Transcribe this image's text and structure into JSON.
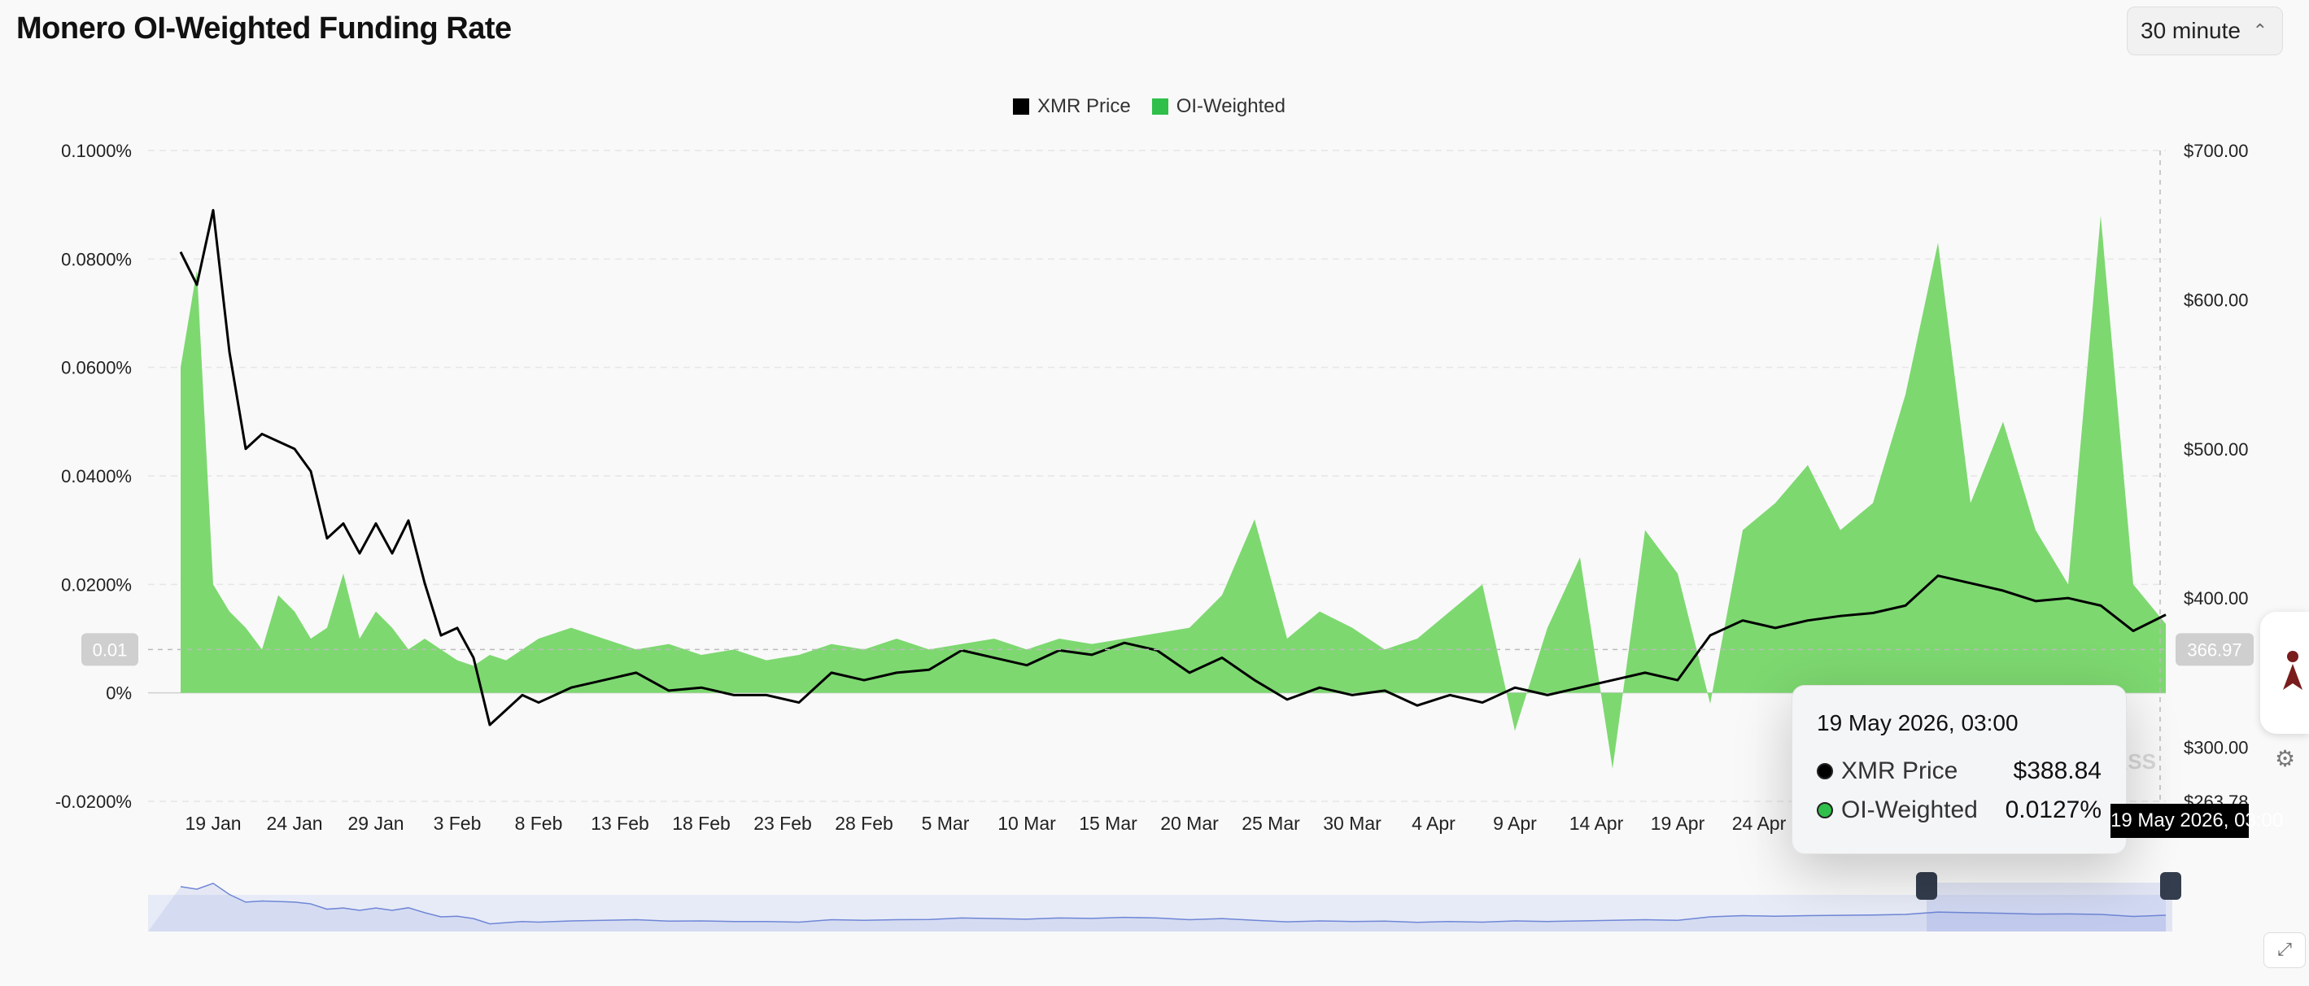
{
  "page": {
    "title": "Monero OI-Weighted Funding Rate",
    "interval_label": "30 minute"
  },
  "colors": {
    "price": "#000000",
    "funding_pos": "#7dd870",
    "funding_neg": "#ef6b6b",
    "navigator": "#6f86d6"
  },
  "chart_data": {
    "type": "area",
    "x_type": "date",
    "x_ticks": [
      "19 Jan",
      "24 Jan",
      "29 Jan",
      "3 Feb",
      "8 Feb",
      "13 Feb",
      "18 Feb",
      "23 Feb",
      "28 Feb",
      "5 Mar",
      "10 Mar",
      "15 Mar",
      "20 Mar",
      "25 Mar",
      "30 Mar",
      "4 Apr",
      "9 Apr",
      "14 Apr",
      "19 Apr",
      "24 Apr"
    ],
    "y_left_ticks": [
      "0.1000%",
      "0.0800%",
      "0.0600%",
      "0.0400%",
      "0.0200%",
      "0%",
      "-0.0200%"
    ],
    "y_left_range": [
      -0.02,
      0.1
    ],
    "y_right_ticks": [
      "$700.00",
      "$600.00",
      "$500.00",
      "$400.00",
      "$300.00"
    ],
    "y_right_range": [
      263.78,
      700
    ],
    "y_right_min_label": "$263.78",
    "crosshair_left_label": "0.01",
    "crosshair_right_label": "366.97",
    "legend": [
      "XMR Price",
      "OI-Weighted"
    ],
    "series": [
      {
        "name": "XMR Price",
        "axis": "right",
        "type": "line",
        "x": [
          "2026-01-17",
          "2026-01-18",
          "2026-01-19",
          "2026-01-20",
          "2026-01-21",
          "2026-01-22",
          "2026-01-23",
          "2026-01-24",
          "2026-01-25",
          "2026-01-26",
          "2026-01-27",
          "2026-01-28",
          "2026-01-29",
          "2026-01-30",
          "2026-01-31",
          "2026-02-01",
          "2026-02-02",
          "2026-02-03",
          "2026-02-04",
          "2026-02-05",
          "2026-02-06",
          "2026-02-07",
          "2026-02-08",
          "2026-02-10",
          "2026-02-12",
          "2026-02-14",
          "2026-02-16",
          "2026-02-18",
          "2026-02-20",
          "2026-02-22",
          "2026-02-24",
          "2026-02-26",
          "2026-02-28",
          "2026-03-02",
          "2026-03-04",
          "2026-03-06",
          "2026-03-08",
          "2026-03-10",
          "2026-03-12",
          "2026-03-14",
          "2026-03-16",
          "2026-03-18",
          "2026-03-20",
          "2026-03-22",
          "2026-03-24",
          "2026-03-26",
          "2026-03-28",
          "2026-03-30",
          "2026-04-01",
          "2026-04-03",
          "2026-04-05",
          "2026-04-07",
          "2026-04-09",
          "2026-04-11",
          "2026-04-13",
          "2026-04-15",
          "2026-04-17",
          "2026-04-19",
          "2026-04-21",
          "2026-04-23",
          "2026-04-25",
          "2026-04-27",
          "2026-04-29",
          "2026-05-01",
          "2026-05-03",
          "2026-05-05",
          "2026-05-07",
          "2026-05-09",
          "2026-05-11",
          "2026-05-13",
          "2026-05-15",
          "2026-05-17",
          "2026-05-19"
        ],
        "values": [
          632,
          610,
          660,
          565,
          500,
          510,
          505,
          500,
          485,
          440,
          450,
          430,
          450,
          430,
          452,
          410,
          375,
          380,
          360,
          315,
          325,
          335,
          330,
          340,
          345,
          350,
          338,
          340,
          335,
          335,
          330,
          350,
          345,
          350,
          352,
          365,
          360,
          355,
          365,
          362,
          370,
          365,
          350,
          360,
          345,
          332,
          340,
          335,
          338,
          328,
          335,
          330,
          340,
          335,
          340,
          345,
          350,
          345,
          375,
          385,
          380,
          385,
          388,
          390,
          395,
          415,
          410,
          405,
          398,
          400,
          395,
          378,
          388.84
        ]
      },
      {
        "name": "OI-Weighted",
        "axis": "left",
        "type": "area",
        "x": [
          "2026-01-17",
          "2026-01-18",
          "2026-01-19",
          "2026-01-20",
          "2026-01-21",
          "2026-01-22",
          "2026-01-23",
          "2026-01-24",
          "2026-01-25",
          "2026-01-26",
          "2026-01-27",
          "2026-01-28",
          "2026-01-29",
          "2026-01-30",
          "2026-01-31",
          "2026-02-01",
          "2026-02-02",
          "2026-02-03",
          "2026-02-04",
          "2026-02-05",
          "2026-02-06",
          "2026-02-07",
          "2026-02-08",
          "2026-02-10",
          "2026-02-12",
          "2026-02-14",
          "2026-02-16",
          "2026-02-18",
          "2026-02-20",
          "2026-02-22",
          "2026-02-24",
          "2026-02-26",
          "2026-02-28",
          "2026-03-02",
          "2026-03-04",
          "2026-03-06",
          "2026-03-08",
          "2026-03-10",
          "2026-03-12",
          "2026-03-14",
          "2026-03-16",
          "2026-03-18",
          "2026-03-20",
          "2026-03-22",
          "2026-03-24",
          "2026-03-26",
          "2026-03-28",
          "2026-03-30",
          "2026-04-01",
          "2026-04-03",
          "2026-04-05",
          "2026-04-07",
          "2026-04-09",
          "2026-04-11",
          "2026-04-13",
          "2026-04-15",
          "2026-04-17",
          "2026-04-19",
          "2026-04-21",
          "2026-04-23",
          "2026-04-25",
          "2026-04-27",
          "2026-04-29",
          "2026-05-01",
          "2026-05-03",
          "2026-05-05",
          "2026-05-07",
          "2026-05-09",
          "2026-05-11",
          "2026-05-13",
          "2026-05-15",
          "2026-05-17",
          "2026-05-19"
        ],
        "values": [
          0.06,
          0.078,
          0.02,
          0.015,
          0.012,
          0.008,
          0.018,
          0.015,
          0.01,
          0.012,
          0.022,
          0.01,
          0.015,
          0.012,
          0.008,
          0.01,
          0.008,
          0.006,
          0.005,
          0.007,
          0.006,
          0.008,
          0.01,
          0.012,
          0.01,
          0.008,
          0.009,
          0.007,
          0.008,
          0.006,
          0.007,
          0.009,
          0.008,
          0.01,
          0.008,
          0.009,
          0.01,
          0.008,
          0.01,
          0.009,
          0.01,
          0.011,
          0.012,
          0.018,
          0.032,
          0.01,
          0.015,
          0.012,
          0.008,
          0.01,
          0.015,
          0.02,
          -0.007,
          0.012,
          0.025,
          -0.014,
          0.03,
          0.022,
          -0.002,
          0.03,
          0.035,
          0.042,
          0.03,
          0.035,
          0.055,
          0.083,
          0.035,
          0.05,
          0.03,
          0.02,
          0.088,
          0.02,
          0.0127
        ]
      }
    ]
  },
  "tooltip": {
    "date": "19 May 2026, 03:00",
    "rows": [
      {
        "label": "XMR Price",
        "value": "$388.84"
      },
      {
        "label": "OI-Weighted",
        "value": "0.0127%"
      }
    ]
  },
  "crosshair_x_tag": "19 May 2026, 03:00",
  "watermark": "COINGLASS"
}
